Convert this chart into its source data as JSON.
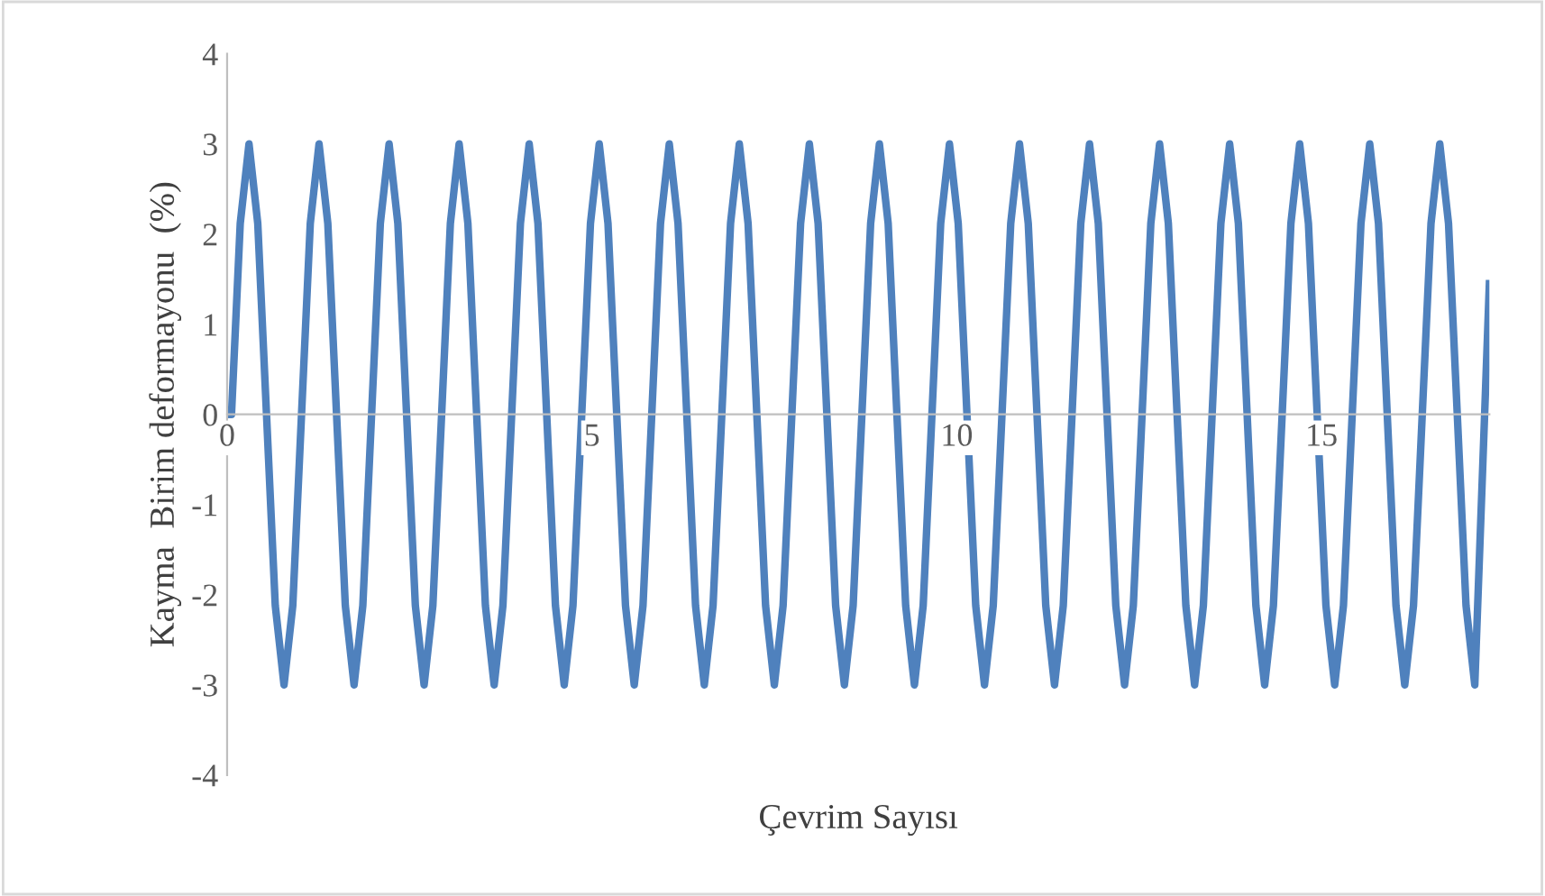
{
  "chart_data": {
    "type": "line",
    "xlabel": "Çevrim Sayısı",
    "ylabel": "Kayma  Birim deformayonu  (%)",
    "xlim": [
      0,
      17.3
    ],
    "xticks": [
      0,
      5,
      10,
      15
    ],
    "ylim": [
      -4,
      4
    ],
    "yticks": [
      -4,
      -3,
      -2,
      -1,
      0,
      1,
      2,
      3,
      4
    ],
    "grid": false,
    "marker": "none",
    "line_style": "solid",
    "series": [
      {
        "color": "#4f81bd",
        "x": [
          0,
          0.06,
          0.18,
          0.3,
          0.42,
          0.54,
          0.66,
          0.78,
          0.9,
          1.02,
          1.14,
          1.26,
          1.38,
          1.5,
          1.62,
          1.74,
          1.86,
          1.98,
          2.1,
          2.22,
          2.34,
          2.46,
          2.58,
          2.7,
          2.82,
          2.94,
          3.06,
          3.18,
          3.3,
          3.42,
          3.54,
          3.66,
          3.78,
          3.9,
          4.02,
          4.14,
          4.26,
          4.38,
          4.5,
          4.62,
          4.74,
          4.86,
          4.98,
          5.1,
          5.22,
          5.34,
          5.46,
          5.58,
          5.7,
          5.82,
          5.94,
          6.06,
          6.18,
          6.3,
          6.42,
          6.54,
          6.66,
          6.78,
          6.9,
          7.02,
          7.14,
          7.26,
          7.38,
          7.5,
          7.62,
          7.74,
          7.86,
          7.98,
          8.1,
          8.22,
          8.34,
          8.46,
          8.58,
          8.7,
          8.82,
          8.94,
          9.06,
          9.18,
          9.3,
          9.42,
          9.54,
          9.66,
          9.78,
          9.9,
          10.02,
          10.14,
          10.26,
          10.38,
          10.5,
          10.62,
          10.74,
          10.86,
          10.98,
          11.1,
          11.22,
          11.34,
          11.46,
          11.58,
          11.7,
          11.82,
          11.94,
          12.06,
          12.18,
          12.3,
          12.42,
          12.54,
          12.66,
          12.78,
          12.9,
          13.02,
          13.14,
          13.26,
          13.38,
          13.5,
          13.62,
          13.74,
          13.86,
          13.98,
          14.1,
          14.22,
          14.34,
          14.46,
          14.58,
          14.7,
          14.82,
          14.94,
          15.06,
          15.18,
          15.3,
          15.42,
          15.54,
          15.66,
          15.78,
          15.9,
          16.02,
          16.14,
          16.26,
          16.38,
          16.5,
          16.62,
          16.74,
          16.86,
          16.98,
          17.1,
          17.3
        ],
        "values": [
          0,
          0,
          2.12,
          3,
          2.12,
          0,
          -2.12,
          -3,
          -2.12,
          0,
          2.12,
          3,
          2.12,
          0,
          -2.12,
          -3,
          -2.12,
          0,
          2.12,
          3,
          2.12,
          0,
          -2.12,
          -3,
          -2.12,
          0,
          2.12,
          3,
          2.12,
          0,
          -2.12,
          -3,
          -2.12,
          0,
          2.12,
          3,
          2.12,
          0,
          -2.12,
          -3,
          -2.12,
          0,
          2.12,
          3,
          2.12,
          0,
          -2.12,
          -3,
          -2.12,
          0,
          2.12,
          3,
          2.12,
          0,
          -2.12,
          -3,
          -2.12,
          0,
          2.12,
          3,
          2.12,
          0,
          -2.12,
          -3,
          -2.12,
          0,
          2.12,
          3,
          2.12,
          0,
          -2.12,
          -3,
          -2.12,
          0,
          2.12,
          3,
          2.12,
          0,
          -2.12,
          -3,
          -2.12,
          0,
          2.12,
          3,
          2.12,
          0,
          -2.12,
          -3,
          -2.12,
          0,
          2.12,
          3,
          2.12,
          0,
          -2.12,
          -3,
          -2.12,
          0,
          2.12,
          3,
          2.12,
          0,
          -2.12,
          -3,
          -2.12,
          0,
          2.12,
          3,
          2.12,
          0,
          -2.12,
          -3,
          -2.12,
          0,
          2.12,
          3,
          2.12,
          0,
          -2.12,
          -3,
          -2.12,
          0,
          2.12,
          3,
          2.12,
          0,
          -2.12,
          -3,
          -2.12,
          0,
          2.12,
          3,
          2.12,
          0,
          -2.12,
          -3,
          -2.12,
          0,
          2.12,
          3,
          2.12,
          0,
          -2.12,
          -3,
          1.45
        ]
      }
    ]
  }
}
